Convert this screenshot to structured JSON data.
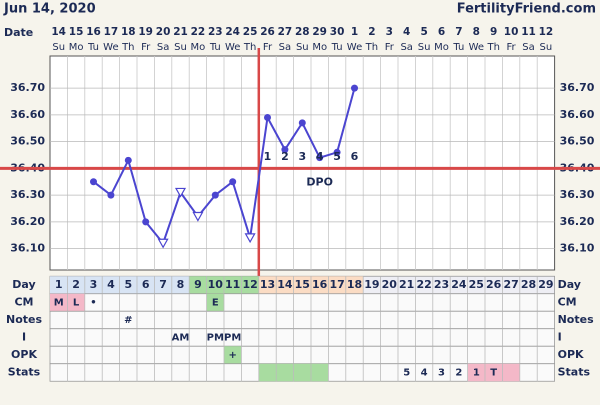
{
  "chart_data": {
    "type": "line",
    "title": "Jun 14, 2020",
    "source": "FertilityFriend.com",
    "date_label": "Date",
    "day_label": "Day",
    "dates": [
      14,
      15,
      16,
      17,
      18,
      19,
      20,
      21,
      22,
      23,
      24,
      25,
      26,
      27,
      28,
      29,
      30,
      1,
      2,
      3,
      4,
      5,
      6,
      7,
      8,
      9,
      10,
      11,
      12
    ],
    "weekdays": [
      "Su",
      "Mo",
      "Tu",
      "We",
      "Th",
      "Fr",
      "Sa",
      "Su",
      "Mo",
      "Tu",
      "We",
      "Th",
      "Fr",
      "Sa",
      "Su",
      "Mo",
      "Tu",
      "We",
      "Th",
      "Fr",
      "Sa",
      "Su",
      "Mo",
      "Tu",
      "We",
      "Th",
      "Fr",
      "Sa",
      "Su"
    ],
    "categories": [
      1,
      2,
      3,
      4,
      5,
      6,
      7,
      8,
      9,
      10,
      11,
      12,
      13,
      14,
      15,
      16,
      17,
      18,
      19,
      20,
      21,
      22,
      23,
      24,
      25,
      26,
      27,
      28,
      29
    ],
    "day_colors": [
      "#d8e4f4",
      "#d8e4f4",
      "#d8e4f4",
      "#d8e4f4",
      "#d8e4f4",
      "#d8e4f4",
      "#d8e4f4",
      "#d8e4f4",
      "#a8dca0",
      "#a8dca0",
      "#a8dca0",
      "#a8dca0",
      "#fbdcc4",
      "#fbdcc4",
      "#fbdcc4",
      "#fbdcc4",
      "#fbdcc4",
      "#fbdcc4",
      null,
      null,
      null,
      null,
      null,
      null,
      null,
      null,
      null,
      null,
      null
    ],
    "series": [
      {
        "color": "#4b45d0",
        "values": [
          null,
          null,
          36.35,
          36.3,
          36.43,
          36.2,
          36.12,
          36.31,
          36.22,
          36.3,
          36.35,
          36.14,
          36.59,
          36.47,
          36.57,
          36.44,
          36.46,
          36.7,
          null,
          null,
          null,
          null,
          null,
          null,
          null,
          null,
          null,
          null,
          null
        ],
        "markers": [
          null,
          null,
          "circle",
          "circle",
          "circle",
          "circle",
          "triangle",
          "triangle",
          "triangle",
          "circle",
          "circle",
          "triangle",
          "circle",
          "circle",
          "circle",
          "circle",
          "circle",
          "circle",
          null,
          null,
          null,
          null,
          null,
          null,
          null,
          null,
          null,
          null,
          null
        ]
      }
    ],
    "ylim": [
      36.02,
      36.82
    ],
    "yticks": [
      {
        "value": 36.1,
        "label": "36.10"
      },
      {
        "value": 36.2,
        "label": "36.20"
      },
      {
        "value": 36.3,
        "label": "36.30"
      },
      {
        "value": 36.4,
        "label": "36.40"
      },
      {
        "value": 36.5,
        "label": "36.50"
      },
      {
        "value": 36.6,
        "label": "36.60"
      },
      {
        "value": 36.7,
        "label": "36.70"
      }
    ],
    "grid": true,
    "coverline": 36.4,
    "ovulation_day": 12,
    "line_color": "#d84848",
    "dpo_label": "DPO",
    "dpo": [
      null,
      null,
      null,
      null,
      null,
      null,
      null,
      null,
      null,
      null,
      null,
      null,
      1,
      2,
      3,
      4,
      5,
      6,
      null,
      null,
      null,
      null,
      null,
      null,
      null,
      null,
      null,
      null,
      null
    ],
    "rows": [
      {
        "label": "CM",
        "cells": [
          "M",
          "L",
          "•",
          null,
          null,
          null,
          null,
          null,
          null,
          "E",
          null,
          null,
          null,
          null,
          null,
          null,
          null,
          null,
          null,
          null,
          null,
          null,
          null,
          null,
          null,
          null,
          null,
          null,
          null
        ],
        "colors": [
          "#f4b8c8",
          "#f4b8c8",
          null,
          null,
          null,
          null,
          null,
          null,
          null,
          "#a8dca0",
          null,
          null,
          null,
          null,
          null,
          null,
          null,
          null,
          null,
          null,
          null,
          null,
          null,
          null,
          null,
          null,
          null,
          null,
          null
        ]
      },
      {
        "label": "Notes",
        "cells": [
          null,
          null,
          null,
          null,
          "#",
          null,
          null,
          null,
          null,
          null,
          null,
          null,
          null,
          null,
          null,
          null,
          null,
          null,
          null,
          null,
          null,
          null,
          null,
          null,
          null,
          null,
          null,
          null,
          null
        ],
        "colors": [
          null,
          null,
          null,
          null,
          null,
          null,
          null,
          null,
          null,
          null,
          null,
          null,
          null,
          null,
          null,
          null,
          null,
          null,
          null,
          null,
          null,
          null,
          null,
          null,
          null,
          null,
          null,
          null,
          null
        ]
      },
      {
        "label": "I",
        "cells": [
          null,
          null,
          null,
          null,
          null,
          null,
          null,
          "AM",
          null,
          "PM",
          "PM",
          null,
          null,
          null,
          null,
          null,
          null,
          null,
          null,
          null,
          null,
          null,
          null,
          null,
          null,
          null,
          null,
          null,
          null
        ],
        "colors": [
          null,
          null,
          null,
          null,
          null,
          null,
          null,
          null,
          null,
          null,
          null,
          null,
          null,
          null,
          null,
          null,
          null,
          null,
          null,
          null,
          null,
          null,
          null,
          null,
          null,
          null,
          null,
          null,
          null
        ]
      },
      {
        "label": "OPK",
        "cells": [
          null,
          null,
          null,
          null,
          null,
          null,
          null,
          null,
          null,
          null,
          "+",
          null,
          null,
          null,
          null,
          null,
          null,
          null,
          null,
          null,
          null,
          null,
          null,
          null,
          null,
          null,
          null,
          null,
          null
        ],
        "colors": [
          null,
          null,
          null,
          null,
          null,
          null,
          null,
          null,
          null,
          null,
          "#a8dca0",
          null,
          null,
          null,
          null,
          null,
          null,
          null,
          null,
          null,
          null,
          null,
          null,
          null,
          null,
          null,
          null,
          null,
          null
        ]
      },
      {
        "label": "Stats",
        "cells": [
          null,
          null,
          null,
          null,
          null,
          null,
          null,
          null,
          null,
          null,
          null,
          null,
          null,
          null,
          null,
          null,
          null,
          null,
          null,
          null,
          "5",
          "4",
          "3",
          "2",
          "1",
          "T",
          null,
          null,
          null
        ],
        "colors": [
          null,
          null,
          null,
          null,
          null,
          null,
          null,
          null,
          null,
          null,
          null,
          null,
          "#a8dca0",
          "#a8dca0",
          "#a8dca0",
          "#a8dca0",
          null,
          null,
          null,
          null,
          null,
          null,
          null,
          null,
          "#f4b8c8",
          "#f4b8c8",
          "#f4b8c8",
          null,
          null
        ]
      }
    ]
  }
}
